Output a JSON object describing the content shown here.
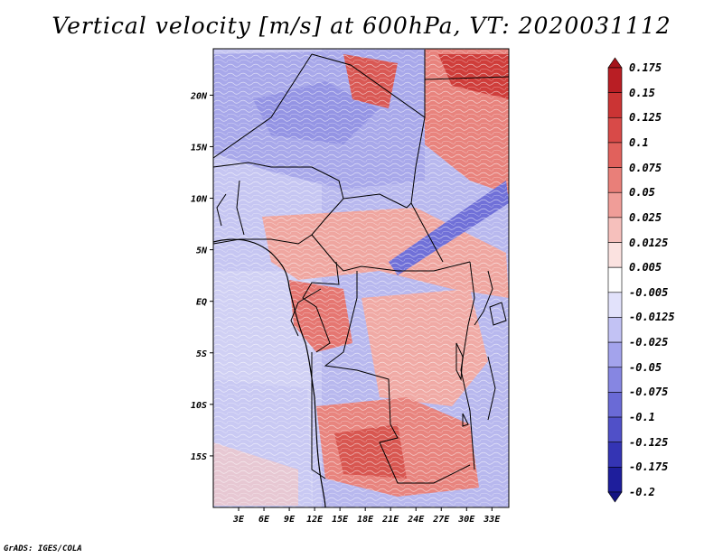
{
  "title": "Vertical velocity [m/s] at 600hPa, VT: 2020031112",
  "credit": "GrADS: IGES/COLA",
  "map": {
    "lon_range": [
      0,
      35
    ],
    "lat_range": [
      -20,
      24.5
    ],
    "lat_ticks": [
      {
        "lat": 20,
        "label": "20N"
      },
      {
        "lat": 15,
        "label": "15N"
      },
      {
        "lat": 10,
        "label": "10N"
      },
      {
        "lat": 5,
        "label": "5N"
      },
      {
        "lat": 0,
        "label": "EQ"
      },
      {
        "lat": -5,
        "label": "5S"
      },
      {
        "lat": -10,
        "label": "10S"
      },
      {
        "lat": -15,
        "label": "15S"
      }
    ],
    "lon_ticks": [
      {
        "lon": 3,
        "label": "3E"
      },
      {
        "lon": 6,
        "label": "6E"
      },
      {
        "lon": 9,
        "label": "9E"
      },
      {
        "lon": 12,
        "label": "12E"
      },
      {
        "lon": 15,
        "label": "15E"
      },
      {
        "lon": 18,
        "label": "18E"
      },
      {
        "lon": 21,
        "label": "21E"
      },
      {
        "lon": 24,
        "label": "24E"
      },
      {
        "lon": 27,
        "label": "27E"
      },
      {
        "lon": 30,
        "label": "30E"
      },
      {
        "lon": 33,
        "label": "33E"
      }
    ]
  },
  "colorbar": {
    "levels": [
      "0.175",
      "0.15",
      "0.125",
      "0.1",
      "0.075",
      "0.05",
      "0.025",
      "0.0125",
      "0.005",
      "-0.005",
      "-0.0125",
      "-0.025",
      "-0.05",
      "-0.075",
      "-0.1",
      "-0.125",
      "-0.175",
      "-0.2"
    ],
    "colors": [
      "#a5141b",
      "#b91e24",
      "#cb3434",
      "#d84a48",
      "#e1615c",
      "#e97f79",
      "#f09d98",
      "#f6c0bc",
      "#fbe2e0",
      "#ffffff",
      "#e2e2fb",
      "#c2c2f4",
      "#a3a3ec",
      "#8686e2",
      "#6a6ad6",
      "#5050c8",
      "#3434b4",
      "#1e1e9c",
      "#141482"
    ]
  }
}
